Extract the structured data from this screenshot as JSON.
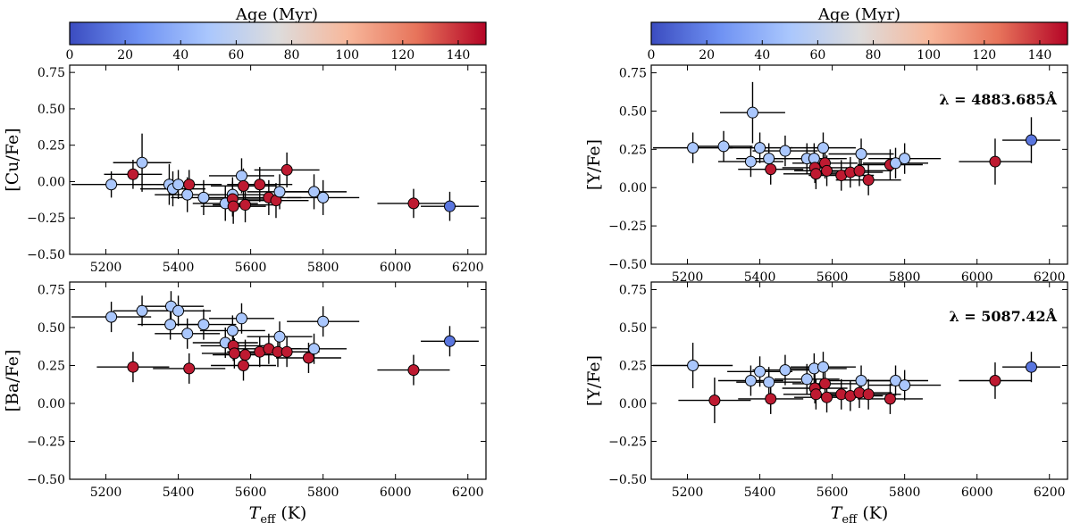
{
  "colorbar": {
    "label": "Age (Myr)",
    "range": [
      0,
      150
    ],
    "ticks": [
      "0",
      "20",
      "40",
      "60",
      "80",
      "100",
      "120",
      "140"
    ],
    "colormap": "coolwarm",
    "stops": [
      "#3b4cc0",
      "#6f92f3",
      "#aac7fd",
      "#dddcdc",
      "#f7b89c",
      "#e7745b",
      "#b40426"
    ]
  },
  "colors": {
    "young": "#a6c4f7",
    "old": "#b40426",
    "hot": "#4060d0"
  },
  "chart_data": [
    {
      "type": "scatter",
      "ylabel": "[Cu/Fe]",
      "xlabel": "",
      "xlim": [
        5100,
        6250
      ],
      "ylim": [
        -0.5,
        0.8
      ],
      "xticks": [
        "5200",
        "5400",
        "5600",
        "5800",
        "6000",
        "6200"
      ],
      "yticks": [
        "−0.50",
        "−0.25",
        "0.00",
        "0.25",
        "0.50",
        "0.75"
      ],
      "annotation": "",
      "points": [
        {
          "x": 5215,
          "y": -0.02,
          "xerr": 110,
          "yerr": 0.09,
          "age": 50
        },
        {
          "x": 5275,
          "y": 0.05,
          "xerr": 80,
          "yerr": 0.1,
          "age": 145
        },
        {
          "x": 5300,
          "y": 0.13,
          "xerr": 80,
          "yerr": 0.2,
          "age": 50
        },
        {
          "x": 5375,
          "y": -0.02,
          "xerr": 100,
          "yerr": 0.14,
          "age": 50
        },
        {
          "x": 5385,
          "y": -0.05,
          "xerr": 90,
          "yerr": 0.12,
          "age": 50
        },
        {
          "x": 5400,
          "y": -0.02,
          "xerr": 90,
          "yerr": 0.1,
          "age": 50
        },
        {
          "x": 5425,
          "y": -0.09,
          "xerr": 90,
          "yerr": 0.12,
          "age": 50
        },
        {
          "x": 5430,
          "y": -0.02,
          "xerr": 90,
          "yerr": 0.1,
          "age": 145
        },
        {
          "x": 5470,
          "y": -0.11,
          "xerr": 90,
          "yerr": 0.12,
          "age": 50
        },
        {
          "x": 5530,
          "y": -0.15,
          "xerr": 90,
          "yerr": 0.12,
          "age": 50
        },
        {
          "x": 5550,
          "y": -0.09,
          "xerr": 90,
          "yerr": 0.12,
          "age": 50
        },
        {
          "x": 5550,
          "y": -0.12,
          "xerr": 90,
          "yerr": 0.12,
          "age": 145
        },
        {
          "x": 5552,
          "y": -0.17,
          "xerr": 90,
          "yerr": 0.12,
          "age": 145
        },
        {
          "x": 5575,
          "y": 0.04,
          "xerr": 90,
          "yerr": 0.12,
          "age": 50
        },
        {
          "x": 5580,
          "y": -0.03,
          "xerr": 90,
          "yerr": 0.12,
          "age": 145
        },
        {
          "x": 5585,
          "y": -0.16,
          "xerr": 90,
          "yerr": 0.12,
          "age": 145
        },
        {
          "x": 5625,
          "y": -0.02,
          "xerr": 90,
          "yerr": 0.12,
          "age": 145
        },
        {
          "x": 5650,
          "y": -0.11,
          "xerr": 90,
          "yerr": 0.12,
          "age": 145
        },
        {
          "x": 5670,
          "y": -0.13,
          "xerr": 90,
          "yerr": 0.12,
          "age": 145
        },
        {
          "x": 5680,
          "y": -0.07,
          "xerr": 90,
          "yerr": 0.12,
          "age": 50
        },
        {
          "x": 5700,
          "y": 0.08,
          "xerr": 90,
          "yerr": 0.12,
          "age": 145
        },
        {
          "x": 5775,
          "y": -0.07,
          "xerr": 90,
          "yerr": 0.12,
          "age": 50
        },
        {
          "x": 5800,
          "y": -0.11,
          "xerr": 100,
          "yerr": 0.12,
          "age": 50
        },
        {
          "x": 6050,
          "y": -0.15,
          "xerr": 100,
          "yerr": 0.1,
          "age": 145
        },
        {
          "x": 6150,
          "y": -0.17,
          "xerr": 80,
          "yerr": 0.1,
          "age": 15
        }
      ]
    },
    {
      "type": "scatter",
      "ylabel": "[Ba/Fe]",
      "xlabel": "T_eff (K)",
      "xlim": [
        5100,
        6250
      ],
      "ylim": [
        -0.5,
        0.8
      ],
      "xticks": [
        "5200",
        "5400",
        "5600",
        "5800",
        "6000",
        "6200"
      ],
      "yticks": [
        "−0.50",
        "−0.25",
        "0.00",
        "0.25",
        "0.50",
        "0.75"
      ],
      "annotation": "",
      "points": [
        {
          "x": 5215,
          "y": 0.57,
          "xerr": 110,
          "yerr": 0.1,
          "age": 50
        },
        {
          "x": 5275,
          "y": 0.24,
          "xerr": 100,
          "yerr": 0.1,
          "age": 145
        },
        {
          "x": 5300,
          "y": 0.61,
          "xerr": 80,
          "yerr": 0.1,
          "age": 50
        },
        {
          "x": 5380,
          "y": 0.64,
          "xerr": 90,
          "yerr": 0.1,
          "age": 50
        },
        {
          "x": 5378,
          "y": 0.52,
          "xerr": 90,
          "yerr": 0.1,
          "age": 50
        },
        {
          "x": 5400,
          "y": 0.61,
          "xerr": 90,
          "yerr": 0.1,
          "age": 50
        },
        {
          "x": 5425,
          "y": 0.46,
          "xerr": 90,
          "yerr": 0.1,
          "age": 50
        },
        {
          "x": 5430,
          "y": 0.23,
          "xerr": 100,
          "yerr": 0.1,
          "age": 145
        },
        {
          "x": 5470,
          "y": 0.52,
          "xerr": 90,
          "yerr": 0.1,
          "age": 50
        },
        {
          "x": 5530,
          "y": 0.4,
          "xerr": 90,
          "yerr": 0.1,
          "age": 50
        },
        {
          "x": 5550,
          "y": 0.48,
          "xerr": 90,
          "yerr": 0.1,
          "age": 50
        },
        {
          "x": 5552,
          "y": 0.38,
          "xerr": 90,
          "yerr": 0.1,
          "age": 145
        },
        {
          "x": 5555,
          "y": 0.33,
          "xerr": 90,
          "yerr": 0.1,
          "age": 145
        },
        {
          "x": 5575,
          "y": 0.56,
          "xerr": 90,
          "yerr": 0.1,
          "age": 50
        },
        {
          "x": 5580,
          "y": 0.25,
          "xerr": 90,
          "yerr": 0.1,
          "age": 145
        },
        {
          "x": 5585,
          "y": 0.32,
          "xerr": 90,
          "yerr": 0.1,
          "age": 145
        },
        {
          "x": 5625,
          "y": 0.34,
          "xerr": 90,
          "yerr": 0.1,
          "age": 145
        },
        {
          "x": 5650,
          "y": 0.36,
          "xerr": 90,
          "yerr": 0.1,
          "age": 145
        },
        {
          "x": 5675,
          "y": 0.34,
          "xerr": 90,
          "yerr": 0.1,
          "age": 145
        },
        {
          "x": 5680,
          "y": 0.44,
          "xerr": 90,
          "yerr": 0.1,
          "age": 50
        },
        {
          "x": 5700,
          "y": 0.34,
          "xerr": 90,
          "yerr": 0.1,
          "age": 145
        },
        {
          "x": 5760,
          "y": 0.3,
          "xerr": 90,
          "yerr": 0.1,
          "age": 145
        },
        {
          "x": 5775,
          "y": 0.36,
          "xerr": 90,
          "yerr": 0.1,
          "age": 50
        },
        {
          "x": 5800,
          "y": 0.54,
          "xerr": 100,
          "yerr": 0.1,
          "age": 50
        },
        {
          "x": 6050,
          "y": 0.22,
          "xerr": 100,
          "yerr": 0.1,
          "age": 145
        },
        {
          "x": 6150,
          "y": 0.41,
          "xerr": 80,
          "yerr": 0.1,
          "age": 15
        }
      ]
    },
    {
      "type": "scatter",
      "ylabel": "[Y/Fe]",
      "xlabel": "",
      "xlim": [
        5100,
        6250
      ],
      "ylim": [
        -0.5,
        0.8
      ],
      "xticks": [
        "5200",
        "5400",
        "5600",
        "5800",
        "6000",
        "6200"
      ],
      "yticks": [
        "−0.50",
        "−0.25",
        "0.00",
        "0.25",
        "0.50",
        "0.75"
      ],
      "annotation": "λ = 4883.685Å",
      "points": [
        {
          "x": 5215,
          "y": 0.26,
          "xerr": 110,
          "yerr": 0.1,
          "age": 50
        },
        {
          "x": 5300,
          "y": 0.27,
          "xerr": 80,
          "yerr": 0.1,
          "age": 50
        },
        {
          "x": 5375,
          "y": 0.17,
          "xerr": 90,
          "yerr": 0.1,
          "age": 50
        },
        {
          "x": 5380,
          "y": 0.49,
          "xerr": 90,
          "yerr": 0.2,
          "age": 50
        },
        {
          "x": 5400,
          "y": 0.26,
          "xerr": 90,
          "yerr": 0.1,
          "age": 50
        },
        {
          "x": 5425,
          "y": 0.19,
          "xerr": 90,
          "yerr": 0.1,
          "age": 50
        },
        {
          "x": 5430,
          "y": 0.12,
          "xerr": 90,
          "yerr": 0.1,
          "age": 145
        },
        {
          "x": 5470,
          "y": 0.24,
          "xerr": 90,
          "yerr": 0.1,
          "age": 50
        },
        {
          "x": 5530,
          "y": 0.19,
          "xerr": 90,
          "yerr": 0.1,
          "age": 50
        },
        {
          "x": 5550,
          "y": 0.19,
          "xerr": 90,
          "yerr": 0.1,
          "age": 50
        },
        {
          "x": 5552,
          "y": 0.13,
          "xerr": 90,
          "yerr": 0.1,
          "age": 145
        },
        {
          "x": 5555,
          "y": 0.09,
          "xerr": 90,
          "yerr": 0.1,
          "age": 145
        },
        {
          "x": 5575,
          "y": 0.26,
          "xerr": 90,
          "yerr": 0.1,
          "age": 50
        },
        {
          "x": 5580,
          "y": 0.16,
          "xerr": 90,
          "yerr": 0.1,
          "age": 145
        },
        {
          "x": 5585,
          "y": 0.11,
          "xerr": 90,
          "yerr": 0.1,
          "age": 145
        },
        {
          "x": 5625,
          "y": 0.08,
          "xerr": 90,
          "yerr": 0.1,
          "age": 145
        },
        {
          "x": 5650,
          "y": 0.1,
          "xerr": 90,
          "yerr": 0.1,
          "age": 145
        },
        {
          "x": 5675,
          "y": 0.11,
          "xerr": 90,
          "yerr": 0.1,
          "age": 145
        },
        {
          "x": 5680,
          "y": 0.22,
          "xerr": 90,
          "yerr": 0.1,
          "age": 50
        },
        {
          "x": 5700,
          "y": 0.05,
          "xerr": 90,
          "yerr": 0.1,
          "age": 145
        },
        {
          "x": 5760,
          "y": 0.15,
          "xerr": 90,
          "yerr": 0.1,
          "age": 145
        },
        {
          "x": 5775,
          "y": 0.16,
          "xerr": 90,
          "yerr": 0.1,
          "age": 50
        },
        {
          "x": 5800,
          "y": 0.19,
          "xerr": 100,
          "yerr": 0.1,
          "age": 50
        },
        {
          "x": 6050,
          "y": 0.17,
          "xerr": 100,
          "yerr": 0.15,
          "age": 145
        },
        {
          "x": 6150,
          "y": 0.31,
          "xerr": 80,
          "yerr": 0.15,
          "age": 15
        }
      ]
    },
    {
      "type": "scatter",
      "ylabel": "[Y/Fe]",
      "xlabel": "T_eff (K)",
      "xlim": [
        5100,
        6250
      ],
      "ylim": [
        -0.5,
        0.8
      ],
      "xticks": [
        "5200",
        "5400",
        "5600",
        "5800",
        "6000",
        "6200"
      ],
      "yticks": [
        "−0.50",
        "−0.25",
        "0.00",
        "0.25",
        "0.50",
        "0.75"
      ],
      "annotation": "λ = 5087.42Å",
      "points": [
        {
          "x": 5215,
          "y": 0.25,
          "xerr": 110,
          "yerr": 0.15,
          "age": 50
        },
        {
          "x": 5275,
          "y": 0.02,
          "xerr": 100,
          "yerr": 0.15,
          "age": 145
        },
        {
          "x": 5375,
          "y": 0.15,
          "xerr": 90,
          "yerr": 0.1,
          "age": 50
        },
        {
          "x": 5400,
          "y": 0.21,
          "xerr": 90,
          "yerr": 0.1,
          "age": 50
        },
        {
          "x": 5425,
          "y": 0.14,
          "xerr": 90,
          "yerr": 0.1,
          "age": 50
        },
        {
          "x": 5430,
          "y": 0.03,
          "xerr": 90,
          "yerr": 0.1,
          "age": 145
        },
        {
          "x": 5470,
          "y": 0.22,
          "xerr": 90,
          "yerr": 0.1,
          "age": 50
        },
        {
          "x": 5530,
          "y": 0.16,
          "xerr": 90,
          "yerr": 0.1,
          "age": 50
        },
        {
          "x": 5550,
          "y": 0.23,
          "xerr": 90,
          "yerr": 0.1,
          "age": 50
        },
        {
          "x": 5552,
          "y": 0.1,
          "xerr": 90,
          "yerr": 0.1,
          "age": 145
        },
        {
          "x": 5555,
          "y": 0.06,
          "xerr": 90,
          "yerr": 0.1,
          "age": 145
        },
        {
          "x": 5575,
          "y": 0.24,
          "xerr": 90,
          "yerr": 0.1,
          "age": 50
        },
        {
          "x": 5580,
          "y": 0.13,
          "xerr": 90,
          "yerr": 0.1,
          "age": 145
        },
        {
          "x": 5585,
          "y": 0.04,
          "xerr": 90,
          "yerr": 0.1,
          "age": 145
        },
        {
          "x": 5625,
          "y": 0.06,
          "xerr": 90,
          "yerr": 0.1,
          "age": 145
        },
        {
          "x": 5650,
          "y": 0.05,
          "xerr": 90,
          "yerr": 0.1,
          "age": 145
        },
        {
          "x": 5675,
          "y": 0.07,
          "xerr": 90,
          "yerr": 0.1,
          "age": 145
        },
        {
          "x": 5680,
          "y": 0.15,
          "xerr": 90,
          "yerr": 0.1,
          "age": 50
        },
        {
          "x": 5700,
          "y": 0.06,
          "xerr": 90,
          "yerr": 0.1,
          "age": 145
        },
        {
          "x": 5760,
          "y": 0.03,
          "xerr": 90,
          "yerr": 0.1,
          "age": 145
        },
        {
          "x": 5775,
          "y": 0.15,
          "xerr": 90,
          "yerr": 0.1,
          "age": 50
        },
        {
          "x": 5800,
          "y": 0.12,
          "xerr": 100,
          "yerr": 0.1,
          "age": 50
        },
        {
          "x": 6050,
          "y": 0.15,
          "xerr": 100,
          "yerr": 0.12,
          "age": 145
        },
        {
          "x": 6150,
          "y": 0.24,
          "xerr": 80,
          "yerr": 0.1,
          "age": 15
        }
      ]
    }
  ]
}
